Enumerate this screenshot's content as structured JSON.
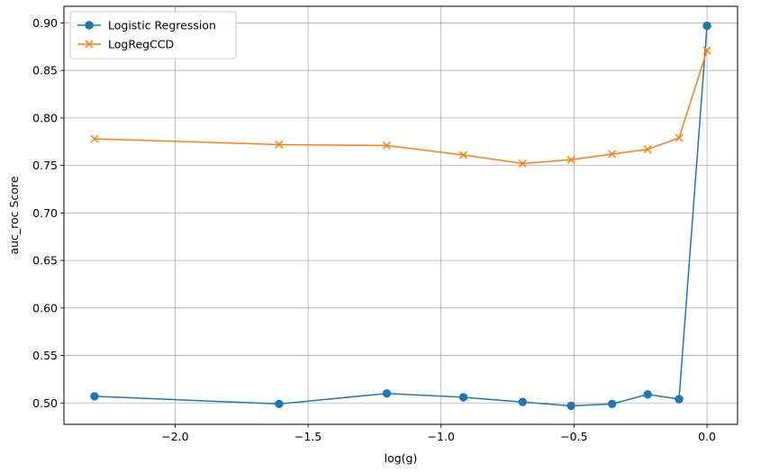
{
  "chart_data": {
    "type": "line",
    "title": "",
    "xlabel": "log(g)",
    "ylabel": "auc_roc Score",
    "xlim": [
      -2.418,
      0.115
    ],
    "ylim": [
      0.4775,
      0.9175
    ],
    "x_ticks": [
      -2.0,
      -1.5,
      -1.0,
      -0.5,
      0.0
    ],
    "x_tick_labels": [
      "−2.0",
      "−1.5",
      "−1.0",
      "−0.5",
      "0.0"
    ],
    "y_ticks": [
      0.5,
      0.55,
      0.6,
      0.65,
      0.7,
      0.75,
      0.8,
      0.85,
      0.9
    ],
    "y_tick_labels": [
      "0.50",
      "0.55",
      "0.60",
      "0.65",
      "0.70",
      "0.75",
      "0.80",
      "0.85",
      "0.90"
    ],
    "grid": true,
    "legend_position": "top-left",
    "x": [
      -2.303,
      -1.609,
      -1.204,
      -0.916,
      -0.693,
      -0.511,
      -0.357,
      -0.223,
      -0.105,
      0.0
    ],
    "series": [
      {
        "name": "Logistic Regression",
        "color": "#1f77b4",
        "marker": "circle",
        "values": [
          0.507,
          0.499,
          0.51,
          0.506,
          0.501,
          0.497,
          0.499,
          0.509,
          0.504,
          0.897
        ]
      },
      {
        "name": "LogRegCCD",
        "color": "#ff7f0e",
        "marker": "x",
        "values": [
          0.778,
          0.772,
          0.771,
          0.761,
          0.752,
          0.756,
          0.762,
          0.767,
          0.779,
          0.871
        ]
      }
    ]
  }
}
